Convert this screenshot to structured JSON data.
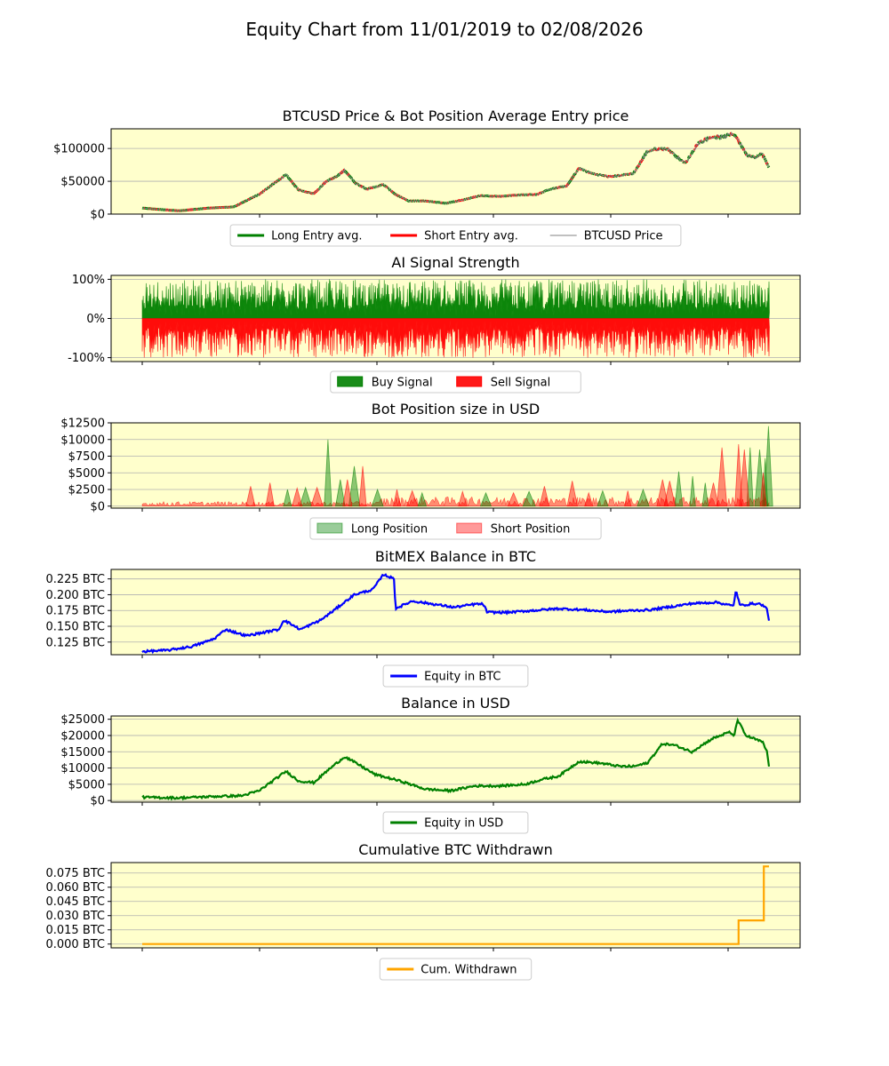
{
  "figure_title": "Equity Chart from 11/01/2019 to 02/08/2026",
  "colors": {
    "panel_bg": "#ffffcc",
    "long": "#008000",
    "short": "#ff0000",
    "price": "#808080",
    "btc_equity": "#0000ff",
    "usd_equity": "#008000",
    "withdrawn": "#ffa500",
    "grid": "#b0b0b0"
  },
  "chart_data": [
    {
      "type": "line",
      "title": "BTCUSD Price & Bot Position Average Entry price",
      "xlabel": "",
      "ylabel": "",
      "x_range": [
        "2019-11-01",
        "2026-02-08"
      ],
      "ylim": [
        0,
        130000
      ],
      "yticks": [
        0,
        50000,
        100000
      ],
      "yticklabels": [
        "$0",
        "$50000",
        "$100000"
      ],
      "grid": true,
      "legend": {
        "placement": "below",
        "entries": [
          {
            "label": "Long Entry avg.",
            "style": "line-thick",
            "color": "#008000"
          },
          {
            "label": "Short Entry avg.",
            "style": "line-thick",
            "color": "#ff0000"
          },
          {
            "label": "BTCUSD Price",
            "style": "line-thin",
            "color": "#808080"
          }
        ]
      },
      "series": [
        {
          "name": "BTCUSD Price",
          "dates": [
            "2019-11-01",
            "2020-01-01",
            "2020-03-15",
            "2020-07-01",
            "2020-10-01",
            "2021-01-01",
            "2021-04-10",
            "2021-05-25",
            "2021-07-20",
            "2021-09-05",
            "2021-10-15",
            "2021-11-10",
            "2021-12-20",
            "2022-02-01",
            "2022-04-01",
            "2022-05-15",
            "2022-07-01",
            "2022-09-01",
            "2022-11-15",
            "2023-01-10",
            "2023-03-20",
            "2023-06-01",
            "2023-08-01",
            "2023-10-15",
            "2023-12-01",
            "2024-02-01",
            "2024-03-15",
            "2024-05-01",
            "2024-07-05",
            "2024-08-15",
            "2024-10-01",
            "2024-11-20",
            "2024-12-20",
            "2025-02-01",
            "2025-04-08",
            "2025-05-25",
            "2025-07-15",
            "2025-08-15",
            "2025-10-05",
            "2025-11-20",
            "2025-12-20",
            "2026-01-15",
            "2026-02-08"
          ],
          "values": [
            9200,
            7200,
            5000,
            9200,
            11000,
            30000,
            60000,
            37000,
            31000,
            50000,
            58000,
            67000,
            47000,
            38000,
            45000,
            30000,
            20000,
            20000,
            16500,
            21000,
            28000,
            27000,
            29000,
            30000,
            38000,
            43000,
            70000,
            62000,
            57000,
            59000,
            62000,
            95000,
            99000,
            100000,
            77000,
            108000,
            118000,
            117000,
            122000,
            90000,
            87000,
            92000,
            70000
          ]
        }
      ]
    },
    {
      "type": "area",
      "title": "AI Signal Strength",
      "xlabel": "",
      "ylabel": "",
      "x_range": [
        "2019-11-01",
        "2026-02-08"
      ],
      "ylim": [
        -110,
        110
      ],
      "yticks": [
        -100,
        0,
        100
      ],
      "yticklabels": [
        "-100%",
        "0%",
        "100%"
      ],
      "grid": true,
      "legend": {
        "placement": "below",
        "entries": [
          {
            "label": "Buy Signal",
            "style": "patch",
            "color": "#008000"
          },
          {
            "label": "Sell Signal",
            "style": "patch",
            "color": "#ff0000"
          }
        ]
      },
      "series": [
        {
          "name": "Buy Signal",
          "range": [
            0,
            100
          ]
        },
        {
          "name": "Sell Signal",
          "range": [
            -100,
            0
          ]
        }
      ]
    },
    {
      "type": "area",
      "title": "Bot Position size in USD",
      "xlabel": "",
      "ylabel": "",
      "x_range": [
        "2019-11-01",
        "2026-02-08"
      ],
      "ylim": [
        -300,
        12500
      ],
      "yticks": [
        0,
        2500,
        5000,
        7500,
        10000,
        12500
      ],
      "yticklabels": [
        "$0",
        "$2500",
        "$5000",
        "$7500",
        "$10000",
        "$12500"
      ],
      "grid": true,
      "legend": {
        "placement": "below",
        "entries": [
          {
            "label": "Long Position",
            "style": "patch-light",
            "color": "#008000"
          },
          {
            "label": "Short Position",
            "style": "patch-light",
            "color": "#ff0000"
          }
        ]
      },
      "series": [
        {
          "name": "Long Position",
          "spikes": [
            [
              "2021-04-15",
              2500
            ],
            [
              "2021-06-20",
              2800
            ],
            [
              "2021-09-10",
              10000
            ],
            [
              "2021-10-25",
              4000
            ],
            [
              "2021-12-15",
              6000
            ],
            [
              "2022-03-10",
              2500
            ],
            [
              "2022-08-20",
              2000
            ],
            [
              "2023-04-10",
              2000
            ],
            [
              "2023-09-15",
              2200
            ],
            [
              "2024-06-10",
              2300
            ],
            [
              "2024-11-05",
              2500
            ],
            [
              "2025-03-15",
              5200
            ],
            [
              "2025-05-05",
              4500
            ],
            [
              "2025-06-20",
              3500
            ],
            [
              "2025-12-01",
              8800
            ],
            [
              "2026-01-05",
              8500
            ],
            [
              "2026-01-25",
              7200
            ],
            [
              "2026-02-06",
              12000
            ]
          ]
        },
        {
          "name": "Short Position",
          "spikes": [
            [
              "2020-12-01",
              3000
            ],
            [
              "2021-02-10",
              3500
            ],
            [
              "2021-05-20",
              2700
            ],
            [
              "2021-08-01",
              2800
            ],
            [
              "2021-11-20",
              4000
            ],
            [
              "2022-01-15",
              6000
            ],
            [
              "2022-05-20",
              2500
            ],
            [
              "2022-07-15",
              2300
            ],
            [
              "2023-01-15",
              2200
            ],
            [
              "2023-07-20",
              2000
            ],
            [
              "2023-11-10",
              3000
            ],
            [
              "2024-02-20",
              3800
            ],
            [
              "2024-04-20",
              2000
            ],
            [
              "2024-09-10",
              2300
            ],
            [
              "2025-01-15",
              4000
            ],
            [
              "2025-02-10",
              3800
            ],
            [
              "2025-07-20",
              3500
            ],
            [
              "2025-08-20",
              8800
            ],
            [
              "2025-10-20",
              9300
            ],
            [
              "2025-11-10",
              8500
            ],
            [
              "2026-01-18",
              5000
            ]
          ]
        }
      ]
    },
    {
      "type": "line",
      "title": "BitMEX Balance in BTC",
      "xlabel": "",
      "ylabel": "",
      "x_range": [
        "2019-11-01",
        "2026-02-08"
      ],
      "ylim": [
        0.105,
        0.24
      ],
      "yticks": [
        0.125,
        0.15,
        0.175,
        0.2,
        0.225
      ],
      "yticklabels": [
        "0.125 BTC",
        "0.150 BTC",
        "0.175 BTC",
        "0.200 BTC",
        "0.225 BTC"
      ],
      "grid": true,
      "legend": {
        "placement": "below",
        "entries": [
          {
            "label": "Equity in BTC",
            "style": "line-thick",
            "color": "#0000ff"
          }
        ]
      },
      "series": [
        {
          "name": "Equity in BTC",
          "dates": [
            "2019-11-01",
            "2020-02-01",
            "2020-05-01",
            "2020-07-20",
            "2020-09-01",
            "2020-11-15",
            "2021-01-15",
            "2021-03-15",
            "2021-04-01",
            "2021-06-01",
            "2021-08-15",
            "2021-10-01",
            "2021-12-15",
            "2022-02-20",
            "2022-04-01",
            "2022-05-10",
            "2022-05-15",
            "2022-07-15",
            "2022-10-01",
            "2022-12-15",
            "2023-03-01",
            "2023-04-01",
            "2023-04-15",
            "2023-07-01",
            "2023-10-01",
            "2024-01-01",
            "2024-04-01",
            "2024-07-01",
            "2024-10-01",
            "2024-12-01",
            "2025-02-01",
            "2025-05-01",
            "2025-08-01",
            "2025-09-20",
            "2025-10-01",
            "2025-10-10",
            "2025-10-25",
            "2025-12-15",
            "2026-01-10",
            "2026-01-25",
            "2026-02-01",
            "2026-02-08"
          ],
          "values": [
            0.11,
            0.112,
            0.118,
            0.13,
            0.145,
            0.135,
            0.14,
            0.145,
            0.16,
            0.145,
            0.16,
            0.175,
            0.2,
            0.208,
            0.232,
            0.225,
            0.178,
            0.19,
            0.185,
            0.18,
            0.185,
            0.185,
            0.172,
            0.172,
            0.175,
            0.178,
            0.176,
            0.173,
            0.175,
            0.176,
            0.18,
            0.186,
            0.188,
            0.183,
            0.182,
            0.207,
            0.183,
            0.186,
            0.185,
            0.18,
            0.177,
            0.16
          ]
        }
      ]
    },
    {
      "type": "line",
      "title": "Balance in USD",
      "xlabel": "",
      "ylabel": "",
      "x_range": [
        "2019-11-01",
        "2026-02-08"
      ],
      "ylim": [
        -500,
        26000
      ],
      "yticks": [
        0,
        5000,
        10000,
        15000,
        20000,
        25000
      ],
      "yticklabels": [
        "$0",
        "$5000",
        "$10000",
        "$15000",
        "$20000",
        "$25000"
      ],
      "grid": true,
      "legend": {
        "placement": "below",
        "entries": [
          {
            "label": "Equity in USD",
            "style": "line-thick",
            "color": "#008000"
          }
        ]
      },
      "series": [
        {
          "name": "Equity in USD",
          "dates": [
            "2019-11-01",
            "2020-03-15",
            "2020-07-01",
            "2020-11-01",
            "2021-01-01",
            "2021-04-10",
            "2021-05-25",
            "2021-07-20",
            "2021-09-05",
            "2021-11-10",
            "2022-01-01",
            "2022-03-01",
            "2022-06-01",
            "2022-09-01",
            "2022-12-01",
            "2023-03-01",
            "2023-06-01",
            "2023-09-01",
            "2023-11-01",
            "2024-01-01",
            "2024-03-15",
            "2024-06-01",
            "2024-08-15",
            "2024-10-01",
            "2024-11-20",
            "2025-01-15",
            "2025-03-01",
            "2025-05-01",
            "2025-07-15",
            "2025-09-15",
            "2025-10-05",
            "2025-10-15",
            "2025-11-15",
            "2026-01-15",
            "2026-02-01",
            "2026-02-08"
          ],
          "values": [
            1000,
            800,
            1200,
            1500,
            3000,
            9000,
            6000,
            5500,
            9000,
            13500,
            11000,
            8000,
            6000,
            3500,
            3000,
            4500,
            4500,
            5000,
            6500,
            7500,
            12000,
            11500,
            10500,
            10500,
            11500,
            17500,
            17000,
            15000,
            19000,
            21000,
            20000,
            25000,
            20000,
            18000,
            15000,
            10500
          ]
        }
      ]
    },
    {
      "type": "line",
      "title": "Cumulative BTC Withdrawn",
      "xlabel": "",
      "ylabel": "",
      "x_range": [
        "2019-11-01",
        "2026-02-08"
      ],
      "ylim": [
        -0.004,
        0.086
      ],
      "yticks": [
        0,
        0.015,
        0.03,
        0.045,
        0.06,
        0.075
      ],
      "yticklabels": [
        "0.000 BTC",
        "0.015 BTC",
        "0.030 BTC",
        "0.045 BTC",
        "0.060 BTC",
        "0.075 BTC"
      ],
      "grid": true,
      "legend": {
        "placement": "below",
        "entries": [
          {
            "label": "Cum. Withdrawn",
            "style": "line-thick",
            "color": "#ffa500"
          }
        ]
      },
      "series": [
        {
          "name": "Cum. Withdrawn",
          "step": true,
          "dates": [
            "2019-11-01",
            "2025-10-20",
            "2025-10-20",
            "2026-01-20",
            "2026-01-20",
            "2026-02-08"
          ],
          "values": [
            0,
            0,
            0.025,
            0.025,
            0.082,
            0.082
          ]
        }
      ]
    }
  ]
}
